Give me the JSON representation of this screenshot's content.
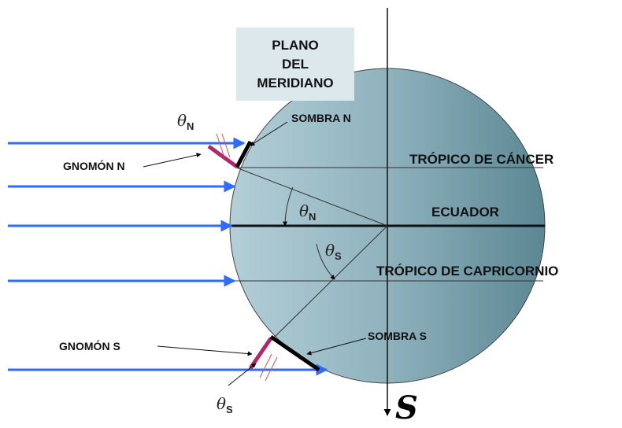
{
  "box_label": [
    "PLANO",
    "DEL",
    "MERIDIANO"
  ],
  "labels": {
    "sombra_n": "SOMBRA N",
    "gnomon_n": "GNOMÓN N",
    "tropic_cancer": "TRÓPICO DE CÁNCER",
    "equator": "ECUADOR",
    "tropic_capricorn": "TRÓPICO DE CAPRICORNIO",
    "gnomon_s": "GNOMÓN S",
    "sombra_s": "SOMBRA S",
    "south": "S"
  },
  "angles": {
    "theta_n_top": {
      "symbol": "θ",
      "subscript": "N"
    },
    "theta_n_center": {
      "symbol": "θ",
      "subscript": "N"
    },
    "theta_s_center": {
      "symbol": "θ",
      "subscript": "S"
    },
    "theta_s_bottom": {
      "symbol": "θ",
      "subscript": "S"
    }
  }
}
